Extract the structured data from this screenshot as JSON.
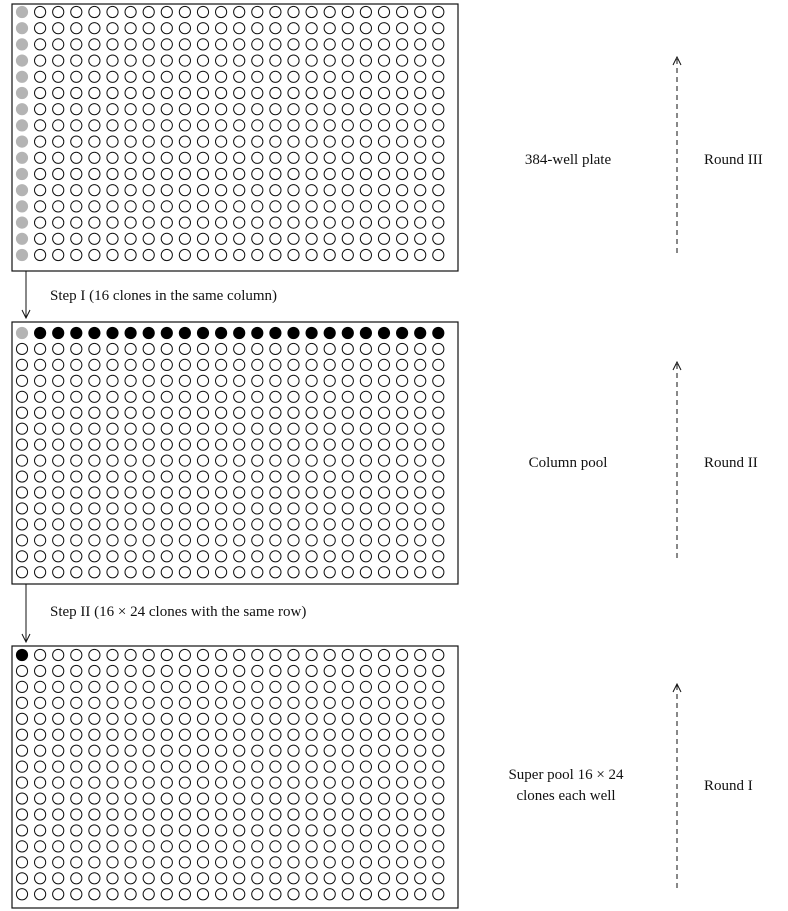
{
  "plates": [
    {
      "id": "plate-384",
      "label_lines": [
        "384-well plate"
      ],
      "round": "Round III",
      "rows": 16,
      "cols": 24,
      "highlight": "first-column-gray"
    },
    {
      "id": "column-pool",
      "label_lines": [
        "Column pool"
      ],
      "round": "Round II",
      "rows": 16,
      "cols": 24,
      "highlight": "first-row-black-first-gray"
    },
    {
      "id": "super-pool",
      "label_lines": [
        "Super pool 16 × 24",
        "clones each well"
      ],
      "round": "Round I",
      "rows": 16,
      "cols": 24,
      "highlight": "first-cell-black"
    }
  ],
  "steps": [
    {
      "id": "step-1",
      "text": "Step I (16 clones in the same column)"
    },
    {
      "id": "step-2",
      "text": "Step II (16 × 24 clones with the same row)"
    }
  ],
  "colors": {
    "empty": "#ffffff",
    "gray": "#b4b4b4",
    "black": "#000000",
    "stroke": "#111111"
  }
}
